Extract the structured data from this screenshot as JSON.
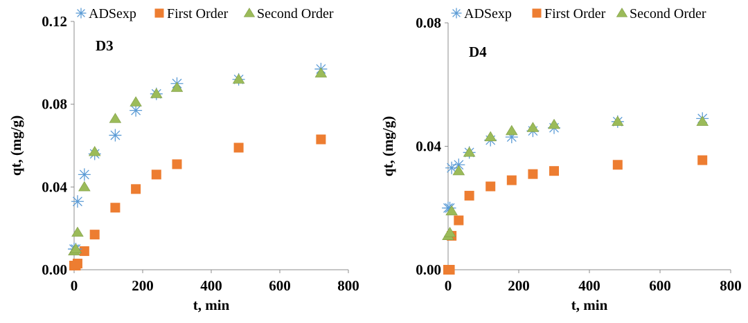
{
  "chart_data": [
    {
      "type": "scatter",
      "annotation": "D3",
      "xlabel": "t, min",
      "ylabel": "qt, (mg/g)",
      "xlim": [
        0,
        800
      ],
      "ylim": [
        0,
        0.12
      ],
      "x_ticks": [
        "0",
        "200",
        "400",
        "600",
        "800"
      ],
      "y_ticks": [
        "0.00",
        "0.04",
        "0.08",
        "0.12"
      ],
      "grid": false,
      "legend_position": "top",
      "series": [
        {
          "name": "ADSexp",
          "marker": "asterisk",
          "color": "#5b9bd5",
          "x": [
            0,
            5,
            10,
            30,
            60,
            120,
            180,
            240,
            300,
            480,
            720
          ],
          "y": [
            0.01,
            0.01,
            0.033,
            0.046,
            0.056,
            0.065,
            0.077,
            0.085,
            0.09,
            0.092,
            0.097
          ]
        },
        {
          "name": "First Order",
          "marker": "square",
          "color": "#ed7d31",
          "x": [
            0,
            5,
            10,
            30,
            60,
            120,
            180,
            240,
            300,
            480,
            720
          ],
          "y": [
            0.002,
            0.002,
            0.003,
            0.009,
            0.017,
            0.03,
            0.039,
            0.046,
            0.051,
            0.059,
            0.063
          ]
        },
        {
          "name": "Second Order",
          "marker": "triangle",
          "color": "#9bbb59",
          "x": [
            0,
            5,
            10,
            30,
            60,
            120,
            180,
            240,
            300,
            480,
            720
          ],
          "y": [
            0.009,
            0.01,
            0.018,
            0.04,
            0.057,
            0.073,
            0.081,
            0.085,
            0.088,
            0.092,
            0.095
          ]
        }
      ]
    },
    {
      "type": "scatter",
      "annotation": "D4",
      "xlabel": "t, min",
      "ylabel": "qt, (mg/g)",
      "xlim": [
        0,
        800
      ],
      "ylim": [
        0,
        0.08
      ],
      "x_ticks": [
        "0",
        "200",
        "400",
        "600",
        "800"
      ],
      "y_ticks": [
        "0.00",
        "0.04",
        "0.08"
      ],
      "grid": false,
      "legend_position": "top",
      "series": [
        {
          "name": "ADSexp",
          "marker": "asterisk",
          "color": "#5b9bd5",
          "x": [
            0,
            5,
            10,
            30,
            60,
            120,
            180,
            240,
            300,
            480,
            720
          ],
          "y": [
            0.02,
            0.02,
            0.033,
            0.034,
            0.038,
            0.042,
            0.043,
            0.045,
            0.046,
            0.048,
            0.049
          ]
        },
        {
          "name": "First Order",
          "marker": "square",
          "color": "#ed7d31",
          "x": [
            0,
            5,
            10,
            30,
            60,
            120,
            180,
            240,
            300,
            480,
            720
          ],
          "y": [
            0.0,
            0.0,
            0.011,
            0.016,
            0.024,
            0.027,
            0.029,
            0.031,
            0.032,
            0.034,
            0.0355
          ]
        },
        {
          "name": "Second Order",
          "marker": "triangle",
          "color": "#9bbb59",
          "x": [
            0,
            5,
            10,
            30,
            60,
            120,
            180,
            240,
            300,
            480,
            720
          ],
          "y": [
            0.011,
            0.012,
            0.019,
            0.032,
            0.038,
            0.043,
            0.045,
            0.046,
            0.047,
            0.048,
            0.048
          ]
        }
      ]
    }
  ]
}
